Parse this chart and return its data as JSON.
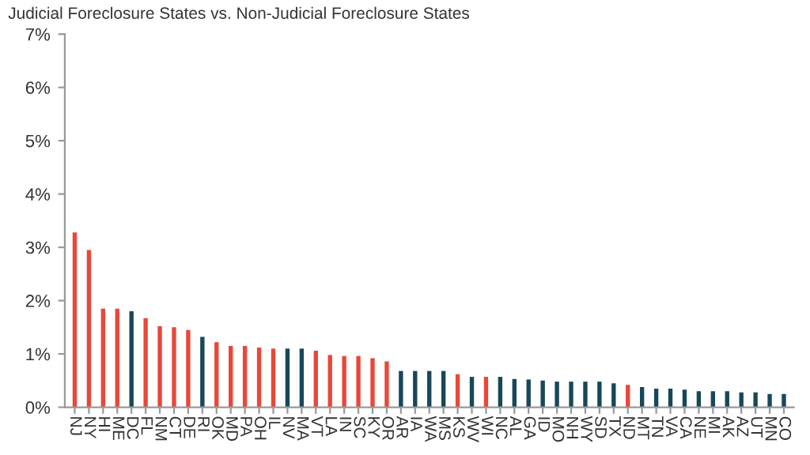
{
  "chart_data": {
    "type": "bar",
    "title": "Judicial Foreclosure States vs. Non-Judicial Foreclosure States",
    "categories": [
      "NJ",
      "NY",
      "HI",
      "ME",
      "DC",
      "FL",
      "NM",
      "CT",
      "DE",
      "RI",
      "OK",
      "MD",
      "PA",
      "OH",
      "IL",
      "NV",
      "MA",
      "VT",
      "LA",
      "IN",
      "SC",
      "KY",
      "OR",
      "AR",
      "IA",
      "WA",
      "MS",
      "KS",
      "WV",
      "WI",
      "NC",
      "AL",
      "GA",
      "ID",
      "MO",
      "NH",
      "WY",
      "SD",
      "TX",
      "ND",
      "MT",
      "TN",
      "VA",
      "CA",
      "NE",
      "MI",
      "AK",
      "AZ",
      "UT",
      "MN",
      "CO"
    ],
    "values": [
      3.28,
      2.95,
      1.85,
      1.85,
      1.8,
      1.67,
      1.52,
      1.5,
      1.45,
      1.32,
      1.22,
      1.15,
      1.15,
      1.12,
      1.1,
      1.1,
      1.1,
      1.06,
      0.98,
      0.96,
      0.96,
      0.92,
      0.86,
      0.68,
      0.68,
      0.68,
      0.68,
      0.62,
      0.57,
      0.57,
      0.57,
      0.53,
      0.52,
      0.5,
      0.48,
      0.48,
      0.48,
      0.48,
      0.45,
      0.42,
      0.38,
      0.35,
      0.35,
      0.33,
      0.3,
      0.3,
      0.3,
      0.28,
      0.28,
      0.25,
      0.25
    ],
    "colors": [
      "#e8473a",
      "#e8473a",
      "#e8473a",
      "#e8473a",
      "#17475a",
      "#e8473a",
      "#e8473a",
      "#e8473a",
      "#e8473a",
      "#17475a",
      "#e8473a",
      "#e8473a",
      "#e8473a",
      "#e8473a",
      "#e8473a",
      "#17475a",
      "#17475a",
      "#e8473a",
      "#e8473a",
      "#e8473a",
      "#e8473a",
      "#e8473a",
      "#e8473a",
      "#17475a",
      "#17475a",
      "#17475a",
      "#17475a",
      "#e8473a",
      "#17475a",
      "#e8473a",
      "#17475a",
      "#17475a",
      "#17475a",
      "#17475a",
      "#17475a",
      "#17475a",
      "#17475a",
      "#17475a",
      "#17475a",
      "#e8473a",
      "#17475a",
      "#17475a",
      "#17475a",
      "#17475a",
      "#17475a",
      "#17475a",
      "#17475a",
      "#17475a",
      "#17475a",
      "#17475a",
      "#17475a"
    ],
    "ylim": [
      0,
      7
    ],
    "yticks": [
      {
        "value": 0,
        "label": "0%"
      },
      {
        "value": 1,
        "label": "1%"
      },
      {
        "value": 2,
        "label": "2%"
      },
      {
        "value": 3,
        "label": "3%"
      },
      {
        "value": 4,
        "label": "4%"
      },
      {
        "value": 5,
        "label": "5%"
      },
      {
        "value": 6,
        "label": "6%"
      },
      {
        "value": 7,
        "label": "7%"
      }
    ],
    "grid": false,
    "legend": false
  }
}
